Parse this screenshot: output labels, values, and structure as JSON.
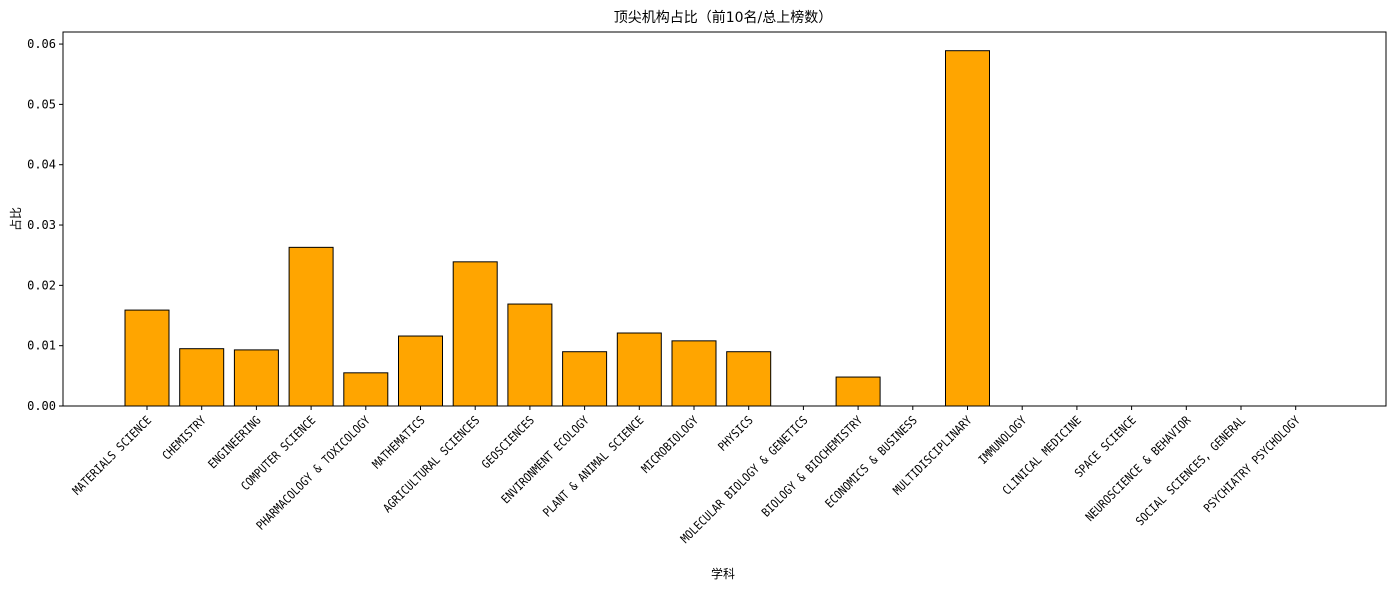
{
  "chart_data": {
    "type": "bar",
    "title": "顶尖机构占比（前10名/总上榜数）",
    "xlabel": "学科",
    "ylabel": "占比",
    "ylim": [
      0,
      0.062
    ],
    "yticks": [
      "0.00",
      "0.01",
      "0.02",
      "0.03",
      "0.04",
      "0.05",
      "0.06"
    ],
    "bar_color": "#FFA500",
    "edge_color": "#000000",
    "grid": false,
    "categories": [
      "MATERIALS SCIENCE",
      "CHEMISTRY",
      "ENGINEERING",
      "COMPUTER SCIENCE",
      "PHARMACOLOGY & TOXICOLOGY",
      "MATHEMATICS",
      "AGRICULTURAL SCIENCES",
      "GEOSCIENCES",
      "ENVIRONMENT ECOLOGY",
      "PLANT & ANIMAL SCIENCE",
      "MICROBIOLOGY",
      "PHYSICS",
      "MOLECULAR BIOLOGY & GENETICS",
      "BIOLOGY & BIOCHEMISTRY",
      "ECONOMICS & BUSINESS",
      "MULTIDISCIPLINARY",
      "IMMUNOLOGY",
      "CLINICAL MEDICINE",
      "SPACE SCIENCE",
      "NEUROSCIENCE & BEHAVIOR",
      "SOCIAL SCIENCES, GENERAL",
      "PSYCHIATRY PSYCHOLOGY"
    ],
    "values": [
      0.0159,
      0.0095,
      0.0093,
      0.0263,
      0.0055,
      0.0116,
      0.0239,
      0.0169,
      0.009,
      0.0121,
      0.0108,
      0.009,
      0.0,
      0.0048,
      0.0,
      0.0589,
      0.0,
      0.0,
      0.0,
      0.0,
      0.0,
      0.0
    ]
  }
}
